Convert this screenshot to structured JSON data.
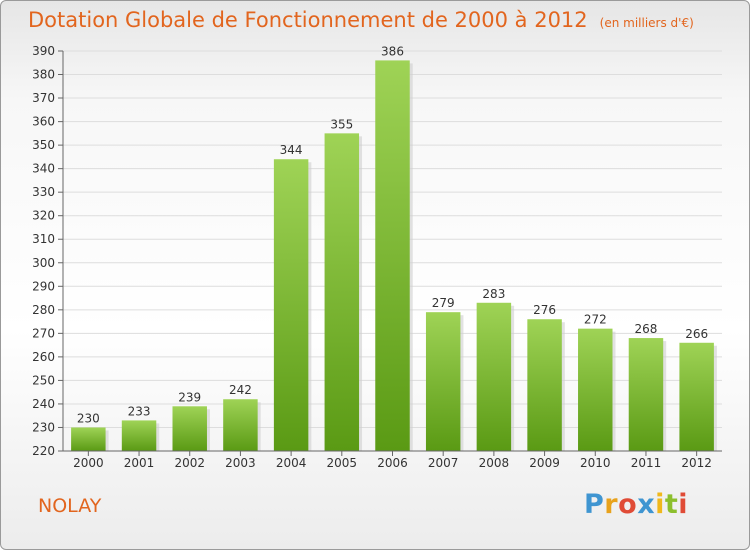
{
  "header": {
    "title": "Dotation Globale de Fonctionnement de 2000 à 2012",
    "subtitle": "(en milliers d'€)"
  },
  "footer": {
    "commune": "NOLAY",
    "logo_text": "Proxiti",
    "logo_letters": [
      "P",
      "r",
      "o",
      "x",
      "i",
      "t",
      "i"
    ]
  },
  "colors": {
    "title": "#e2651e",
    "bar_top": "#9fd356",
    "bar_bottom": "#5a9a14",
    "grid": "#dddddd"
  },
  "chart_data": {
    "type": "bar",
    "title": "Dotation Globale de Fonctionnement de 2000 à 2012",
    "subtitle": "(en milliers d'€)",
    "xlabel": "",
    "ylabel": "",
    "categories": [
      "2000",
      "2001",
      "2002",
      "2003",
      "2004",
      "2005",
      "2006",
      "2007",
      "2008",
      "2009",
      "2010",
      "2011",
      "2012"
    ],
    "values": [
      230,
      233,
      239,
      242,
      344,
      355,
      386,
      279,
      283,
      276,
      272,
      268,
      266
    ],
    "ylim": [
      220,
      390
    ],
    "ytick_step": 10,
    "grid": true,
    "data_labels": true,
    "legend": "none"
  }
}
